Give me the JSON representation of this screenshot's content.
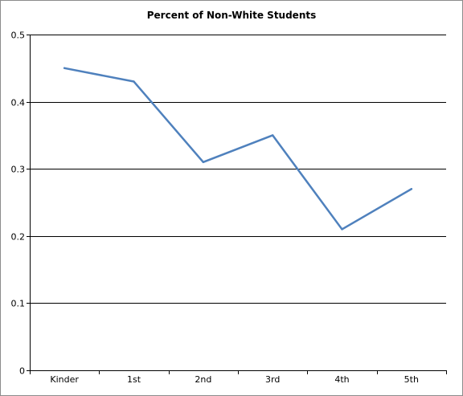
{
  "chart_data": {
    "type": "line",
    "title": "Percent of Non-White Students",
    "xlabel": "",
    "ylabel": "",
    "categories": [
      "Kinder",
      "1st",
      "2nd",
      "3rd",
      "4th",
      "5th"
    ],
    "series": [
      {
        "values": [
          0.45,
          0.43,
          0.31,
          0.35,
          0.21,
          0.27
        ],
        "color": "#4f81bd"
      }
    ],
    "ylim": [
      0,
      0.5
    ],
    "yticks": [
      "0",
      "0.1",
      "0.2",
      "0.3",
      "0.4",
      "0.5"
    ],
    "grid": true,
    "legend": "none"
  }
}
